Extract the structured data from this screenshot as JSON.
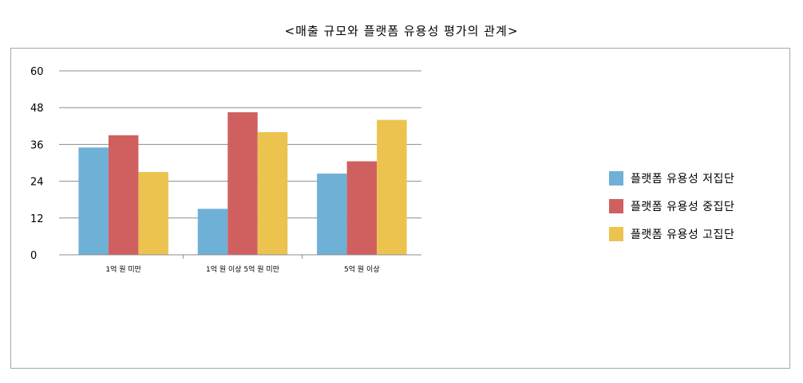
{
  "chart_data": {
    "type": "bar",
    "title": "<매출 규모와 플랫폼 유용성 평가의 관계>",
    "categories": [
      "1억 원 미만",
      "1억 원 이상 5억 원 미만",
      "5억 원 이상"
    ],
    "series": [
      {
        "name": "플랫폼 유용성 저집단",
        "color": "#6fb1d6",
        "values": [
          35,
          15,
          26.5
        ]
      },
      {
        "name": "플랫폼 유용성 중집단",
        "color": "#d06060",
        "values": [
          39,
          46.5,
          30.5
        ]
      },
      {
        "name": "플랫폼 유용성 고집단",
        "color": "#ecc34f",
        "values": [
          27,
          40,
          44
        ]
      }
    ],
    "ylim": [
      0,
      60
    ],
    "yticks": [
      0,
      12,
      24,
      36,
      48,
      60
    ],
    "grid": true,
    "legend_position": "right"
  }
}
